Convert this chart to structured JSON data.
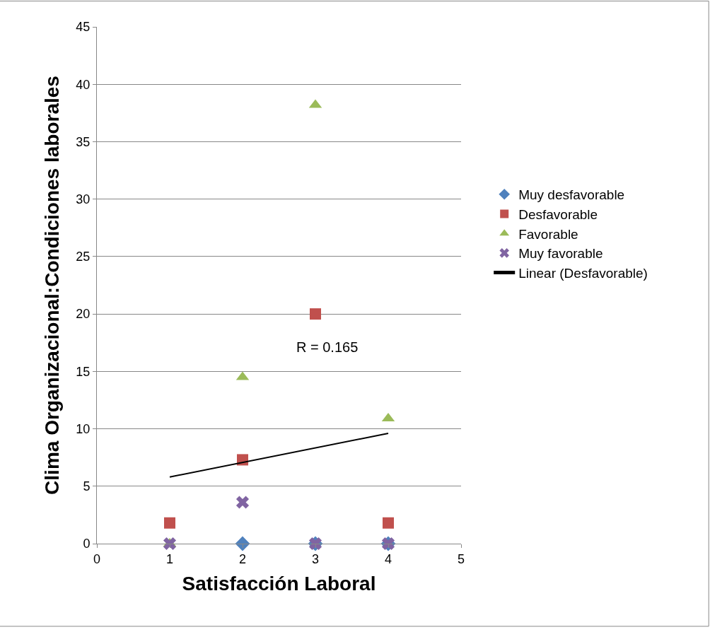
{
  "chart_data": {
    "type": "scatter",
    "xlabel": "Satisfacción Laboral",
    "ylabel": "Clima Organizacional:Condiciones laborales",
    "series": [
      {
        "name": "Muy desfavorable",
        "color": "#4f81bd",
        "marker": "diamond",
        "x": [
          2,
          3,
          4
        ],
        "values": [
          0,
          0,
          0
        ]
      },
      {
        "name": "Desfavorable",
        "color": "#c0504d",
        "marker": "square",
        "x": [
          1,
          2,
          3,
          4
        ],
        "values": [
          1.8,
          7.3,
          20,
          1.8
        ]
      },
      {
        "name": "Favorable",
        "color": "#9bbb59",
        "marker": "triangle",
        "x": [
          1,
          2,
          3,
          4
        ],
        "values": [
          0,
          14.5,
          38.2,
          10.9
        ]
      },
      {
        "name": "Muy favorable",
        "color": "#8064a2",
        "marker": "cross",
        "x": [
          1,
          2,
          3,
          4
        ],
        "values": [
          0,
          3.6,
          0,
          0
        ]
      },
      {
        "name": "Linear (Desfavorable)",
        "type": "line",
        "color": "#000000",
        "marker": "none",
        "line_style": "solid",
        "x": [
          1,
          4
        ],
        "values": [
          5.8,
          9.6
        ]
      }
    ],
    "annotations": [
      "R = 0.165"
    ],
    "xlim": [
      0,
      5
    ],
    "xticks": [
      0,
      1,
      2,
      3,
      4,
      5
    ],
    "ylim": [
      0,
      45
    ],
    "yticks": [
      0,
      5,
      10,
      15,
      20,
      25,
      30,
      35,
      40,
      45
    ],
    "grid": "y",
    "legend": "right"
  }
}
